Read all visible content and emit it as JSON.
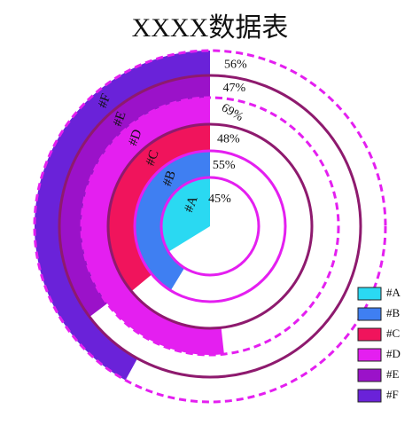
{
  "chart_data": {
    "type": "radial-bar",
    "title": "XXXX数据表",
    "series": [
      {
        "name": "#A",
        "color": "#2ad9f2",
        "values": [
          45
        ],
        "value_labels": [
          "45%"
        ]
      },
      {
        "name": "#B",
        "color": "#3f7ff2",
        "values": [
          55
        ],
        "value_labels": [
          "55%"
        ]
      },
      {
        "name": "#C",
        "color": "#f0145c",
        "values": [
          48
        ],
        "value_labels": [
          "48%"
        ]
      },
      {
        "name": "#D",
        "color": "#e41ff0",
        "values": [
          69
        ],
        "value_labels": [
          "69%"
        ]
      },
      {
        "name": "#E",
        "color": "#9b12c9",
        "values": [
          47
        ],
        "value_labels": [
          "47%"
        ]
      },
      {
        "name": "#F",
        "color": "#6a22d9",
        "values": [
          56
        ],
        "value_labels": [
          "56%"
        ]
      }
    ]
  }
}
